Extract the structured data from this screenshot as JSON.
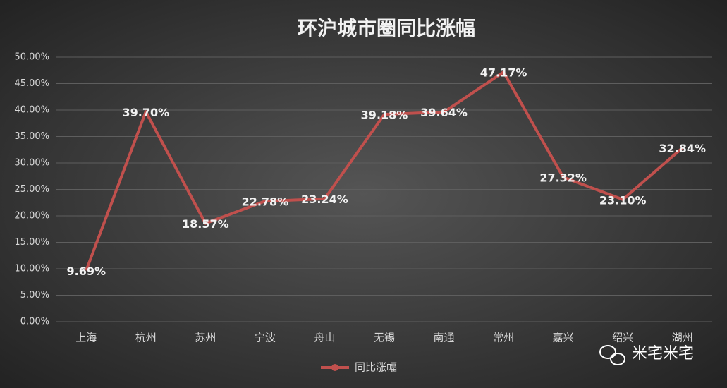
{
  "chart_data": {
    "type": "line",
    "title": "环沪城市圈同比涨幅",
    "categories": [
      "上海",
      "杭州",
      "苏州",
      "宁波",
      "舟山",
      "无锡",
      "南通",
      "常州",
      "嘉兴",
      "绍兴",
      "湖州"
    ],
    "series": [
      {
        "name": "同比涨幅",
        "color": "#c0504d",
        "values": [
          9.69,
          39.7,
          18.57,
          22.78,
          23.24,
          39.18,
          39.64,
          47.17,
          27.32,
          23.1,
          32.84
        ],
        "value_labels": [
          "9.69%",
          "39.70%",
          "18.57%",
          "22.78%",
          "23.24%",
          "39.18%",
          "39.64%",
          "47.17%",
          "27.32%",
          "23.10%",
          "32.84%"
        ]
      }
    ],
    "ylim": [
      0,
      50
    ],
    "yticks": [
      {
        "value": 0,
        "label": "0.00%"
      },
      {
        "value": 5,
        "label": "5.00%"
      },
      {
        "value": 10,
        "label": "10.00%"
      },
      {
        "value": 15,
        "label": "15.00%"
      },
      {
        "value": 20,
        "label": "20.00%"
      },
      {
        "value": 25,
        "label": "25.00%"
      },
      {
        "value": 30,
        "label": "30.00%"
      },
      {
        "value": 35,
        "label": "35.00%"
      },
      {
        "value": 40,
        "label": "40.00%"
      },
      {
        "value": 45,
        "label": "45.00%"
      },
      {
        "value": 50,
        "label": "50.00%"
      }
    ],
    "grid": true,
    "legend": "bottom",
    "watermark": "米宅米宅"
  }
}
